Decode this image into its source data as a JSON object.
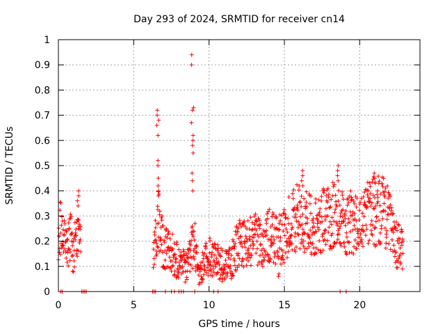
{
  "chart_data": {
    "type": "scatter",
    "title": "Day 293 of 2024, SRMTID for receiver cn14",
    "xlabel": "GPS time / hours",
    "ylabel": "SRMTID / TECUs",
    "xlim": [
      0,
      24
    ],
    "ylim": [
      0,
      1
    ],
    "xticks": [
      0,
      5,
      10,
      15,
      20
    ],
    "xtick_labels": [
      "0",
      "5",
      "10",
      "15",
      "20"
    ],
    "yticks": [
      0,
      0.1,
      0.2,
      0.3,
      0.4,
      0.5,
      0.6,
      0.7,
      0.8,
      0.9,
      1
    ],
    "ytick_labels": [
      "0",
      "0.1",
      "0.2",
      "0.3",
      "0.4",
      "0.5",
      "0.6",
      "0.7",
      "0.8",
      "0.9",
      "1"
    ],
    "grid": true,
    "marker": "+",
    "color": "#ff0000",
    "series": [
      {
        "name": "cn14",
        "anchors_x": [
          0.0,
          0.2,
          0.5,
          0.8,
          1.0,
          1.3,
          1.5,
          6.3,
          6.6,
          6.8,
          7.0,
          7.3,
          7.6,
          8.0,
          8.4,
          8.8,
          9.0,
          9.3,
          9.6,
          10.0,
          10.5,
          11.0,
          11.5,
          12.0,
          12.5,
          13.0,
          13.5,
          14.0,
          14.5,
          15.0,
          15.5,
          16.0,
          16.5,
          17.0,
          17.5,
          18.0,
          18.5,
          19.0,
          19.5,
          20.0,
          20.5,
          21.0,
          21.5,
          22.0,
          22.5,
          22.9
        ],
        "anchors_y": [
          0.24,
          0.27,
          0.16,
          0.22,
          0.15,
          0.25,
          0.18,
          0.12,
          0.3,
          0.22,
          0.18,
          0.16,
          0.15,
          0.11,
          0.1,
          0.14,
          0.22,
          0.05,
          0.1,
          0.14,
          0.12,
          0.1,
          0.12,
          0.2,
          0.18,
          0.22,
          0.18,
          0.22,
          0.2,
          0.22,
          0.28,
          0.3,
          0.28,
          0.25,
          0.28,
          0.3,
          0.32,
          0.25,
          0.28,
          0.25,
          0.3,
          0.32,
          0.33,
          0.28,
          0.18,
          0.16
        ],
        "spikes": [
          {
            "x": 6.6,
            "y": [
              0.72,
              0.7,
              0.68,
              0.66,
              0.62,
              0.52,
              0.5,
              0.45,
              0.42,
              0.4,
              0.38
            ]
          },
          {
            "x": 8.9,
            "y": [
              0.94,
              0.9,
              0.73,
              0.72,
              0.67,
              0.62,
              0.6,
              0.58,
              0.55,
              0.47,
              0.44,
              0.4
            ]
          },
          {
            "x": 1.3,
            "y": [
              0.4,
              0.38,
              0.36,
              0.34
            ]
          },
          {
            "x": 16.2,
            "y": [
              0.48,
              0.46,
              0.44,
              0.42
            ]
          },
          {
            "x": 18.6,
            "y": [
              0.5,
              0.48,
              0.46,
              0.44
            ]
          },
          {
            "x": 21.0,
            "y": [
              0.47,
              0.45,
              0.43
            ]
          },
          {
            "x": 14.6,
            "y": [
              0.07,
              0.06
            ]
          }
        ],
        "zero_x": [
          0.15,
          0.25,
          1.55,
          1.65,
          1.75,
          1.85,
          6.25,
          6.35,
          6.45,
          7.1,
          7.5,
          7.7,
          8.0,
          8.15,
          8.3,
          9.05,
          10.3,
          10.6,
          18.7,
          19.1
        ]
      }
    ]
  }
}
